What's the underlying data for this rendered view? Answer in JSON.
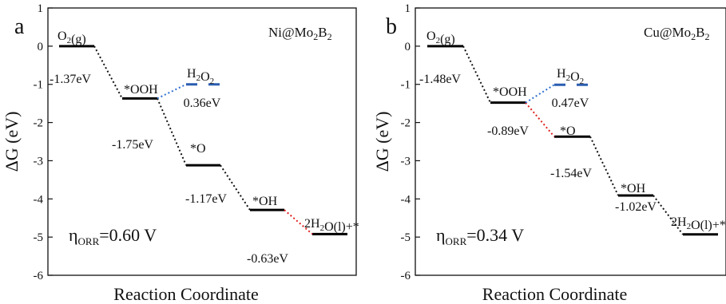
{
  "chart_data": [
    {
      "type": "line",
      "panel_letter": "a",
      "system_label": {
        "base": "Ni@Mo",
        "sub1": "2",
        "mid": "B",
        "sub2": "2"
      },
      "xlabel": "Reaction Coordinate",
      "ylabel": "ΔG (eV)",
      "ylim": [
        -6,
        1
      ],
      "yticks": [
        "1",
        "0",
        "-1",
        "-2",
        "-3",
        "-4",
        "-5",
        "-6"
      ],
      "levels": [
        {
          "state": "O2(g)",
          "value": 0.0
        },
        {
          "state": "*OOH",
          "value": -1.37
        },
        {
          "state": "*O",
          "value": -3.12
        },
        {
          "state": "*OH",
          "value": -4.29
        },
        {
          "state": "2H2O(l)+*",
          "value": -4.92
        }
      ],
      "h2o2_level": {
        "state": "H2O2",
        "value": -1.0
      },
      "step_labels": [
        "-1.37eV",
        "-1.75eV",
        "-1.17eV",
        "-0.63eV"
      ],
      "h2o2_step_label": "0.36eV",
      "limiting_step_index": 3,
      "eta": {
        "symbol": "η",
        "sub": "ORR",
        "value": "=0.60 V"
      }
    },
    {
      "type": "line",
      "panel_letter": "b",
      "system_label": {
        "base": "Cu@Mo",
        "sub1": "2",
        "mid": "B",
        "sub2": "2"
      },
      "xlabel": "Reaction Coordinate",
      "ylabel": "ΔG (eV)",
      "ylim": [
        -6,
        1
      ],
      "yticks": [
        "1",
        "0",
        "-1",
        "-2",
        "-3",
        "-4",
        "-5",
        "-6"
      ],
      "levels": [
        {
          "state": "O2(g)",
          "value": 0.0
        },
        {
          "state": "*OOH",
          "value": -1.48
        },
        {
          "state": "*O",
          "value": -2.37
        },
        {
          "state": "*OH",
          "value": -3.91
        },
        {
          "state": "2H2O(l)+*",
          "value": -4.93
        }
      ],
      "h2o2_level": {
        "state": "H2O2",
        "value": -1.01
      },
      "step_labels": [
        "-1.48eV",
        "-0.89eV",
        "-1.54eV",
        "-1.02eV"
      ],
      "h2o2_step_label": "0.47eV",
      "limiting_step_index": 1,
      "eta": {
        "symbol": "η",
        "sub": "ORR",
        "value": "=0.34 V"
      }
    }
  ],
  "colors": {
    "axis": "#111111",
    "level": "#000000",
    "connector": "#111111",
    "limiting": "#e02020",
    "h2o2": "#2f6fd0",
    "h2o2_level": "#2a5db0"
  }
}
